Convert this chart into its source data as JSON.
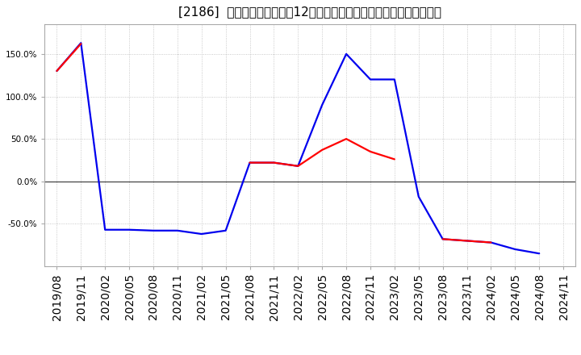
{
  "title": "[2186]  キャッシュフローの12か月移動合計の対前年同期増減率の推移",
  "background_color": "#ffffff",
  "plot_bg_color": "#ffffff",
  "grid_color": "#bbbbbb",
  "x_labels": [
    "2019/08",
    "2019/11",
    "2020/02",
    "2020/05",
    "2020/08",
    "2020/11",
    "2021/02",
    "2021/05",
    "2021/08",
    "2021/11",
    "2022/02",
    "2022/05",
    "2022/08",
    "2022/11",
    "2023/02",
    "2023/05",
    "2023/08",
    "2023/11",
    "2024/02",
    "2024/05",
    "2024/08",
    "2024/11"
  ],
  "eigyo_cf": [
    130,
    162,
    null,
    null,
    null,
    null,
    null,
    null,
    22,
    22,
    18,
    37,
    50,
    35,
    26,
    null,
    -68,
    -70,
    -72,
    null,
    null,
    null
  ],
  "free_cf": [
    130,
    163,
    -57,
    -57,
    -58,
    -58,
    -62,
    -58,
    22,
    22,
    18,
    90,
    150,
    120,
    120,
    -18,
    -68,
    -70,
    -72,
    -80,
    -85,
    null
  ],
  "eigyo_color": "#ff0000",
  "free_color": "#0000ee",
  "ylim": [
    -100,
    185
  ],
  "yticks": [
    -50,
    0,
    50,
    100,
    150
  ],
  "ytick_labels": [
    "-50.0%",
    "0.0%",
    "50.0%",
    "100.0%",
    "150.0%"
  ],
  "title_fontsize": 11,
  "tick_fontsize": 7.5,
  "legend_fontsize": 9
}
